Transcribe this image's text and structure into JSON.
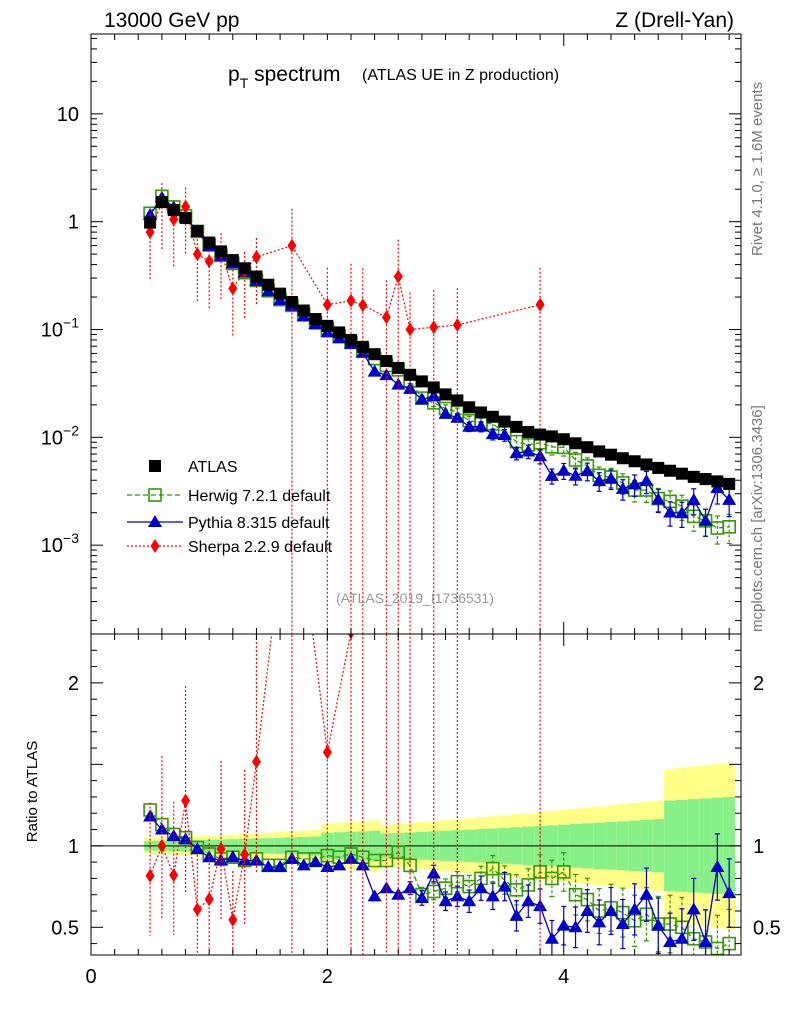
{
  "header": {
    "left": "13000 GeV pp",
    "right": "Z (Drell-Yan)"
  },
  "side_labels": {
    "rivet": "Rivet 4.1.0, ≥ 1.6M events",
    "mcplots": "mcplots.cern.ch [arXiv:1306.3436]"
  },
  "chart_data": {
    "type": "scatter",
    "title": "p_T spectrum",
    "title_main": "p",
    "title_sub": "T",
    "title_rest": " spectrum",
    "subtitle": "(ATLAS UE in Z production)",
    "analysis": "(ATLAS_2019_I1736531)",
    "xlim": [
      0,
      5.5
    ],
    "ylim_log": [
      0.00015,
      55
    ],
    "ratio_ylim": [
      0.33,
      2.3
    ],
    "ratio_ylabel": "Ratio to ATLAS",
    "ref_line": 1,
    "x_ticks": [
      0,
      2,
      4
    ],
    "y_ticks": [
      {
        "v": 10,
        "base": "10",
        "exp": ""
      },
      {
        "v": 1,
        "base": "1",
        "exp": ""
      },
      {
        "v": 0.1,
        "base": "10",
        "exp": "−1"
      },
      {
        "v": 0.01,
        "base": "10",
        "exp": "−2"
      },
      {
        "v": 0.001,
        "base": "10",
        "exp": "−3"
      }
    ],
    "ratio_ticks": [
      {
        "v": 2,
        "label": "2"
      },
      {
        "v": 1,
        "label": "1"
      },
      {
        "v": 0.5,
        "label": "0.5"
      }
    ],
    "x": [
      0.5,
      0.6,
      0.7,
      0.8,
      0.9,
      1.0,
      1.1,
      1.2,
      1.3,
      1.4,
      1.5,
      1.6,
      1.7,
      1.8,
      1.9,
      2.0,
      2.1,
      2.2,
      2.3,
      2.4,
      2.5,
      2.6,
      2.7,
      2.8,
      2.9,
      3.0,
      3.1,
      3.2,
      3.3,
      3.4,
      3.5,
      3.6,
      3.7,
      3.8,
      3.9,
      4.0,
      4.1,
      4.2,
      4.3,
      4.4,
      4.5,
      4.6,
      4.7,
      4.8,
      4.9,
      5.0,
      5.1,
      5.2,
      5.3,
      5.4
    ],
    "series": [
      {
        "name": "ATLAS",
        "style": "data",
        "color": "#000000",
        "values": [
          0.98,
          1.52,
          1.28,
          1.08,
          0.82,
          0.64,
          0.53,
          0.44,
          0.37,
          0.31,
          0.26,
          0.215,
          0.18,
          0.15,
          0.125,
          0.108,
          0.094,
          0.08,
          0.069,
          0.059,
          0.051,
          0.044,
          0.038,
          0.033,
          0.029,
          0.025,
          0.022,
          0.019,
          0.017,
          0.0155,
          0.014,
          0.0125,
          0.0112,
          0.0106,
          0.0102,
          0.0096,
          0.0088,
          0.0081,
          0.0074,
          0.0069,
          0.0064,
          0.006,
          0.0056,
          0.0052,
          0.0049,
          0.0046,
          0.0043,
          0.0041,
          0.0039,
          0.0037
        ]
      },
      {
        "name": "Herwig 7.2.1 default",
        "style": "herwig",
        "color": "#339900",
        "ratio": [
          1.22,
          1.13,
          1.07,
          1.05,
          0.99,
          0.95,
          0.92,
          0.93,
          0.91,
          0.92,
          0.88,
          0.88,
          0.93,
          0.92,
          0.92,
          0.94,
          0.93,
          0.95,
          0.93,
          0.91,
          0.91,
          0.96,
          0.88,
          0.7,
          0.72,
          0.74,
          0.78,
          0.75,
          0.8,
          0.86,
          0.79,
          0.73,
          0.76,
          0.84,
          0.8,
          0.84,
          0.7,
          0.67,
          0.6,
          0.62,
          0.59,
          0.54,
          0.58,
          0.52,
          0.52,
          0.5,
          0.43,
          0.41,
          0.37,
          0.4
        ]
      },
      {
        "name": "Pythia 8.315 default",
        "style": "pythia",
        "color": "#0000cc",
        "ratio": [
          1.18,
          1.1,
          1.06,
          1.04,
          0.98,
          0.93,
          0.91,
          0.93,
          0.91,
          0.91,
          0.87,
          0.87,
          0.92,
          0.88,
          0.9,
          0.87,
          0.88,
          0.92,
          0.88,
          0.69,
          0.74,
          0.7,
          0.74,
          0.68,
          0.83,
          0.66,
          0.69,
          0.66,
          0.74,
          0.69,
          0.75,
          0.57,
          0.66,
          0.63,
          0.43,
          0.51,
          0.5,
          0.6,
          0.53,
          0.6,
          0.52,
          0.61,
          0.7,
          0.51,
          0.41,
          0.43,
          0.61,
          0.41,
          0.87,
          0.71
        ]
      },
      {
        "name": "Sherpa 2.2.9 default",
        "style": "sherpa",
        "color": "#ff0000",
        "x": [
          0.5,
          0.6,
          0.7,
          0.8,
          0.9,
          1.0,
          1.1,
          1.2,
          1.3,
          1.4,
          1.7,
          2.0,
          2.2,
          2.3,
          2.5,
          2.6,
          2.7,
          2.9,
          3.1,
          3.8
        ],
        "values": [
          0.8,
          1.52,
          1.05,
          1.38,
          0.5,
          0.43,
          0.52,
          0.24,
          0.35,
          0.47,
          0.6,
          0.17,
          0.185,
          0.168,
          0.13,
          0.31,
          0.1,
          0.105,
          0.11,
          0.17
        ]
      }
    ],
    "legend": [
      "ATLAS",
      "Herwig 7.2.1 default",
      "Pythia 8.315 default",
      "Sherpa 2.2.9 default"
    ]
  }
}
